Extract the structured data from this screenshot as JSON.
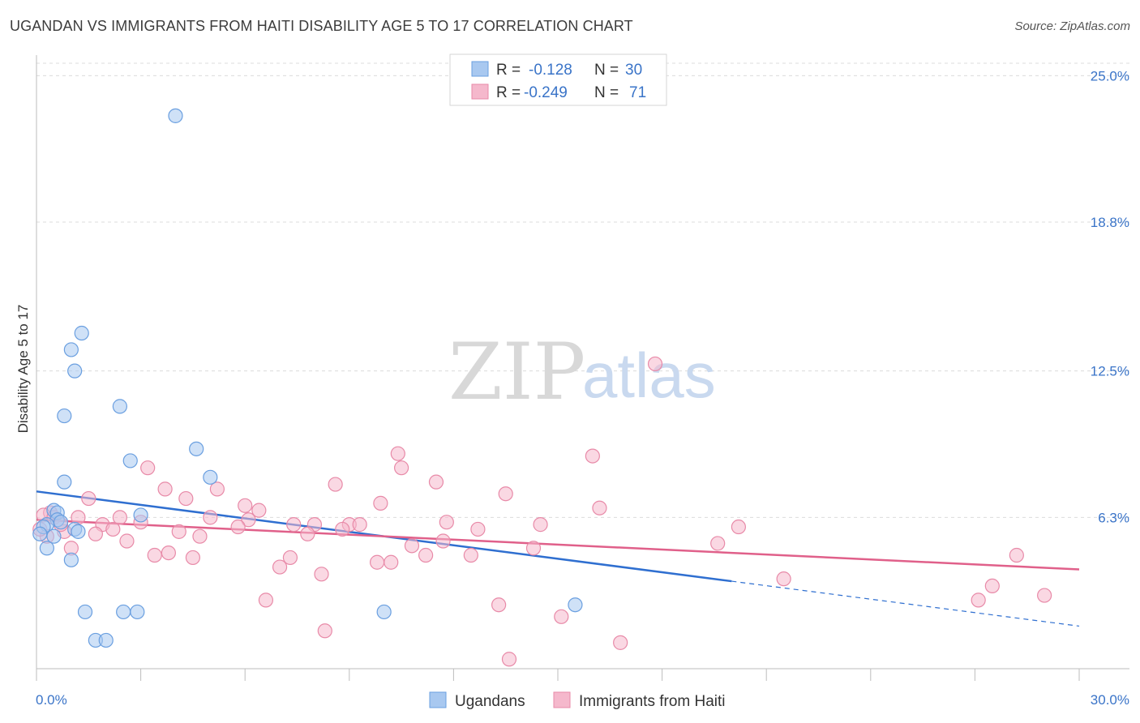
{
  "header": {
    "title": "UGANDAN VS IMMIGRANTS FROM HAITI DISABILITY AGE 5 TO 17 CORRELATION CHART",
    "source": "Source: ZipAtlas.com"
  },
  "watermark": {
    "part1": "ZIP",
    "part2": "atlas"
  },
  "legend": {
    "rows": [
      {
        "r_label": "R =",
        "r_value": "-0.128",
        "n_label": "N =",
        "n_value": "30",
        "color": "#a8c8f0"
      },
      {
        "r_label": "R =",
        "r_value": "-0.249",
        "n_label": "N =",
        "n_value": "71",
        "color": "#f5b8cc"
      }
    ]
  },
  "chart_data": {
    "type": "scatter",
    "title": "UGANDAN VS IMMIGRANTS FROM HAITI DISABILITY AGE 5 TO 17 CORRELATION CHART",
    "xlabel": "",
    "ylabel": "Disability Age 5 to 17",
    "xlim": [
      0,
      30
    ],
    "ylim": [
      0,
      25.8
    ],
    "x_tick_labels": [
      "0.0%",
      "30.0%"
    ],
    "y_ticks": [
      6.3,
      12.5,
      18.8,
      25.0
    ],
    "y_tick_labels": [
      "6.3%",
      "12.5%",
      "18.8%",
      "25.0%"
    ],
    "grid": true,
    "series": [
      {
        "name": "Ugandans",
        "color": "#a8c8f0",
        "stroke": "#6a9fe0",
        "trend": {
          "x0": 0,
          "y0": 7.4,
          "x1": 20,
          "y1": 3.6,
          "x_dash_end": 30,
          "y_dash_end": 1.7,
          "color": "#2f6fd0"
        },
        "points": [
          [
            4.0,
            23.3
          ],
          [
            1.3,
            14.1
          ],
          [
            1.0,
            13.4
          ],
          [
            1.1,
            12.5
          ],
          [
            2.4,
            11.0
          ],
          [
            0.8,
            10.6
          ],
          [
            4.6,
            9.2
          ],
          [
            2.7,
            8.7
          ],
          [
            5.0,
            8.0
          ],
          [
            0.8,
            7.8
          ],
          [
            3.0,
            6.4
          ],
          [
            0.5,
            6.6
          ],
          [
            0.6,
            6.5
          ],
          [
            0.6,
            6.2
          ],
          [
            0.7,
            6.1
          ],
          [
            0.3,
            6.0
          ],
          [
            0.2,
            5.9
          ],
          [
            0.1,
            5.6
          ],
          [
            1.1,
            5.8
          ],
          [
            1.2,
            5.7
          ],
          [
            0.5,
            5.5
          ],
          [
            0.3,
            5.0
          ],
          [
            1.0,
            4.5
          ],
          [
            1.4,
            2.3
          ],
          [
            2.5,
            2.3
          ],
          [
            2.9,
            2.3
          ],
          [
            10.0,
            2.3
          ],
          [
            15.5,
            2.6
          ],
          [
            1.7,
            1.1
          ],
          [
            2.0,
            1.1
          ]
        ]
      },
      {
        "name": "Immigrants from Haiti",
        "color": "#f5b8cc",
        "stroke": "#e88aa8",
        "trend": {
          "x0": 0,
          "y0": 6.2,
          "x1": 30,
          "y1": 4.1,
          "color": "#e0608a"
        },
        "points": [
          [
            17.8,
            12.8
          ],
          [
            10.4,
            9.0
          ],
          [
            16.0,
            8.9
          ],
          [
            3.2,
            8.4
          ],
          [
            10.5,
            8.4
          ],
          [
            11.5,
            7.8
          ],
          [
            8.6,
            7.7
          ],
          [
            3.7,
            7.5
          ],
          [
            5.2,
            7.5
          ],
          [
            13.5,
            7.3
          ],
          [
            1.5,
            7.1
          ],
          [
            4.3,
            7.1
          ],
          [
            9.9,
            6.9
          ],
          [
            6.0,
            6.8
          ],
          [
            16.2,
            6.7
          ],
          [
            6.4,
            6.6
          ],
          [
            0.4,
            6.5
          ],
          [
            1.2,
            6.3
          ],
          [
            2.4,
            6.3
          ],
          [
            5.0,
            6.3
          ],
          [
            6.1,
            6.2
          ],
          [
            3.0,
            6.1
          ],
          [
            11.8,
            6.1
          ],
          [
            1.9,
            6.0
          ],
          [
            7.4,
            6.0
          ],
          [
            8.0,
            6.0
          ],
          [
            9.0,
            6.0
          ],
          [
            9.3,
            6.0
          ],
          [
            14.5,
            6.0
          ],
          [
            20.2,
            5.9
          ],
          [
            5.8,
            5.9
          ],
          [
            2.2,
            5.8
          ],
          [
            12.7,
            5.8
          ],
          [
            8.8,
            5.8
          ],
          [
            0.8,
            5.7
          ],
          [
            4.1,
            5.7
          ],
          [
            1.7,
            5.6
          ],
          [
            7.8,
            5.6
          ],
          [
            0.3,
            5.5
          ],
          [
            4.7,
            5.5
          ],
          [
            2.6,
            5.3
          ],
          [
            11.7,
            5.3
          ],
          [
            10.8,
            5.1
          ],
          [
            19.6,
            5.2
          ],
          [
            1.0,
            5.0
          ],
          [
            14.3,
            5.0
          ],
          [
            3.8,
            4.8
          ],
          [
            3.4,
            4.7
          ],
          [
            4.5,
            4.6
          ],
          [
            12.5,
            4.7
          ],
          [
            11.2,
            4.7
          ],
          [
            7.3,
            4.6
          ],
          [
            10.2,
            4.4
          ],
          [
            9.8,
            4.4
          ],
          [
            28.2,
            4.7
          ],
          [
            7.0,
            4.2
          ],
          [
            8.2,
            3.9
          ],
          [
            21.5,
            3.7
          ],
          [
            27.5,
            3.4
          ],
          [
            29.0,
            3.0
          ],
          [
            6.6,
            2.8
          ],
          [
            27.1,
            2.8
          ],
          [
            13.3,
            2.6
          ],
          [
            15.1,
            2.1
          ],
          [
            8.3,
            1.5
          ],
          [
            16.8,
            1.0
          ],
          [
            13.6,
            0.3
          ],
          [
            0.2,
            6.4
          ],
          [
            0.5,
            6.3
          ],
          [
            0.7,
            6.0
          ],
          [
            0.1,
            5.8
          ]
        ]
      }
    ]
  }
}
